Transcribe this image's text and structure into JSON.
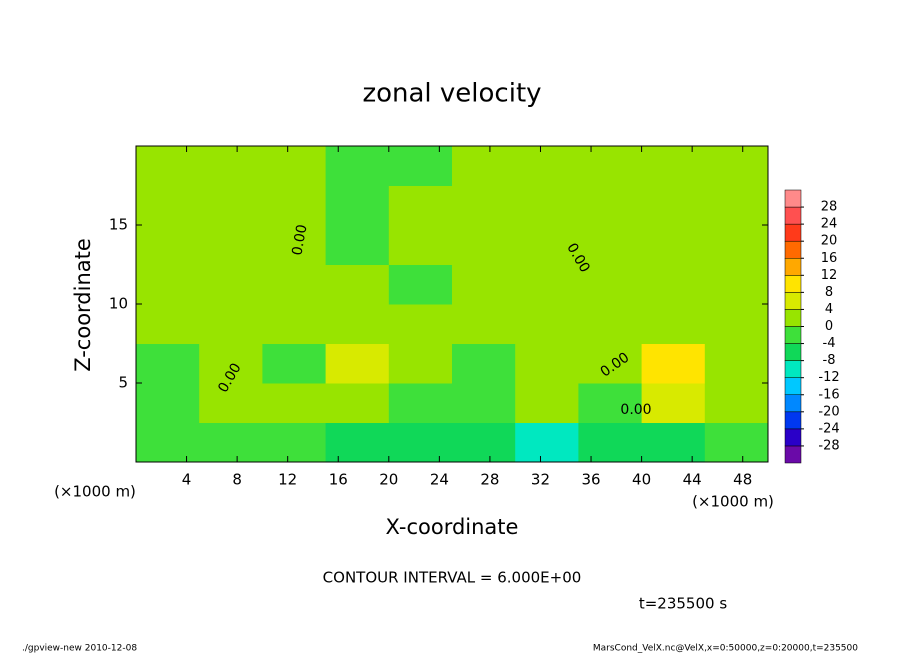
{
  "chart_data": {
    "type": "contour",
    "title": "zonal velocity",
    "xlabel": "X-coordinate",
    "ylabel": "Z-coordinate",
    "x_unit": "(×1000 m)",
    "xlim": [
      0,
      50
    ],
    "ylim": [
      0,
      20
    ],
    "xticks": [
      4,
      8,
      12,
      16,
      20,
      24,
      28,
      32,
      36,
      40,
      44,
      48
    ],
    "yticks": [
      5,
      10,
      15
    ],
    "x": [
      2.5,
      7.5,
      12.5,
      17.5,
      22.5,
      27.5,
      32.5,
      37.5,
      42.5,
      47.5
    ],
    "y": [
      1.25,
      3.75,
      6.25,
      8.75,
      11.25,
      13.75,
      16.25,
      18.75
    ],
    "values": [
      [
        -2,
        -2,
        -4,
        -6,
        -8,
        -8,
        -10,
        -6,
        -8,
        -2
      ],
      [
        -4,
        3,
        0,
        3,
        -4,
        -3,
        1,
        -3,
        4,
        2
      ],
      [
        -3,
        3,
        -1,
        6,
        2,
        -1,
        3,
        0,
        8,
        3
      ],
      [
        0,
        1,
        1,
        3,
        1,
        1,
        1,
        1,
        2,
        1
      ],
      [
        1,
        1,
        1,
        0,
        -1,
        0,
        1,
        1,
        0,
        0
      ],
      [
        1,
        1,
        1,
        -1,
        0,
        0,
        1,
        1,
        1,
        1
      ],
      [
        1,
        1,
        1,
        -1,
        0,
        0,
        0,
        1,
        1,
        1
      ],
      [
        1,
        1,
        1,
        -1,
        -1,
        0,
        0,
        0,
        1,
        1
      ]
    ],
    "contour_label": "0.00",
    "colorbar": {
      "levels": [
        -28,
        -24,
        -20,
        -16,
        -12,
        -8,
        -4,
        0,
        4,
        8,
        12,
        16,
        20,
        24,
        28
      ],
      "colors": [
        "#6a0aa8",
        "#2a00c8",
        "#0038f0",
        "#0088ff",
        "#00c8ff",
        "#00e8c0",
        "#10d858",
        "#3ee03a",
        "#98e400",
        "#d8ea00",
        "#ffe400",
        "#ffa800",
        "#ff6a00",
        "#ff3a1a",
        "#ff5050",
        "#ff8a8a"
      ]
    },
    "contour_interval": "CONTOUR INTERVAL = 6.000E+00",
    "time": "t=235500 s",
    "footer_left": "./gpview-new  2010-12-08",
    "footer_right": "MarsCond_VelX.nc@VelX,x=0:50000,z=0:20000,t=235500"
  }
}
